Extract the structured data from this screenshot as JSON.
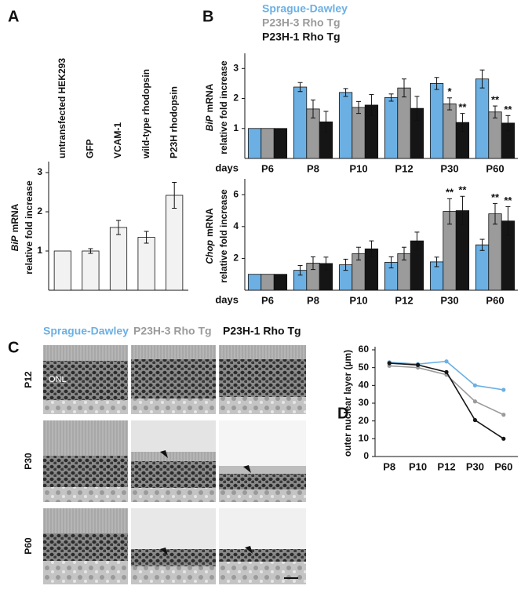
{
  "chart_data": [
    {
      "type": "bar",
      "panel": "A",
      "categories": [
        "untransfected HEK293",
        "GFP",
        "VCAM-1",
        "wild-type rhodopsin",
        "P23H rhodopsin"
      ],
      "values": [
        1,
        1,
        1.6,
        1.35,
        2.42
      ],
      "errors": [
        null,
        0.06,
        0.18,
        0.15,
        0.33
      ],
      "color": "#f2f2f2",
      "ylabel_gene": "BiP",
      "ylabel": "mRNA",
      "ylabel2": "relative fold increase",
      "ylim": [
        0,
        3.2
      ],
      "yticks": [
        1,
        2,
        3
      ]
    },
    {
      "type": "bar",
      "panel": "B",
      "xlabel": "days",
      "categories": [
        "P6",
        "P8",
        "P10",
        "P12",
        "P30",
        "P60"
      ],
      "series": [
        {
          "name": "Sprague-Dawley",
          "color": "#6cb0e3",
          "values": [
            1,
            2.38,
            2.2,
            2.03,
            2.5,
            2.65
          ],
          "errors": [
            null,
            0.15,
            0.13,
            0.12,
            0.2,
            0.3
          ],
          "significance": [
            null,
            null,
            null,
            null,
            null,
            null
          ]
        },
        {
          "name": "P23H-3 Rho Tg",
          "color": "#9b9b9b",
          "values": [
            1,
            1.65,
            1.7,
            2.35,
            1.82,
            1.55
          ],
          "errors": [
            null,
            0.3,
            0.2,
            0.3,
            0.2,
            0.2
          ],
          "significance": [
            null,
            null,
            null,
            null,
            "*",
            "**"
          ]
        },
        {
          "name": "P23H-1 Rho Tg",
          "color": "#151515",
          "values": [
            1,
            1.22,
            1.78,
            1.67,
            1.2,
            1.18
          ],
          "errors": [
            null,
            0.35,
            0.35,
            0.4,
            0.3,
            0.25
          ],
          "significance": [
            null,
            null,
            null,
            null,
            "**",
            "**"
          ]
        }
      ],
      "ylabel_gene": "BiP",
      "ylabel": "mRNA",
      "ylabel2": "relative fold increase",
      "ylim": [
        0,
        3.4
      ],
      "yticks": [
        1,
        2,
        3
      ]
    },
    {
      "type": "bar",
      "xlabel": "days",
      "categories": [
        "P6",
        "P8",
        "P10",
        "P12",
        "P30",
        "P60"
      ],
      "series": [
        {
          "color": "#6cb0e3",
          "values": [
            1,
            1.25,
            1.6,
            1.75,
            1.78,
            2.85
          ],
          "errors": [
            null,
            0.3,
            0.35,
            0.35,
            0.3,
            0.35
          ],
          "significance": [
            null,
            null,
            null,
            null,
            null,
            null
          ]
        },
        {
          "color": "#9b9b9b",
          "values": [
            1,
            1.7,
            2.3,
            2.3,
            4.95,
            4.8
          ],
          "errors": [
            null,
            0.4,
            0.4,
            0.4,
            0.8,
            0.65
          ],
          "significance": [
            null,
            null,
            null,
            null,
            "**",
            "**"
          ]
        },
        {
          "color": "#151515",
          "values": [
            1,
            1.68,
            2.6,
            3.1,
            5.0,
            4.35
          ],
          "errors": [
            null,
            0.4,
            0.5,
            0.55,
            0.9,
            0.9
          ],
          "significance": [
            null,
            null,
            null,
            null,
            "**",
            "**"
          ]
        }
      ],
      "ylabel_gene": "Chop",
      "ylabel": "mRNA",
      "ylabel2": "relative fold increase",
      "ylim": [
        0,
        6.8
      ],
      "yticks": [
        2,
        4,
        6
      ]
    },
    {
      "type": "line",
      "panel": "D",
      "categories": [
        "P8",
        "P10",
        "P12",
        "P30",
        "P60"
      ],
      "series": [
        {
          "color": "#6cb0e3",
          "values": [
            53,
            52,
            53.5,
            40,
            37.5
          ]
        },
        {
          "color": "#9b9b9b",
          "values": [
            51,
            50,
            46,
            31,
            23.5
          ]
        },
        {
          "color": "#151515",
          "values": [
            52.5,
            51.5,
            47.5,
            20.5,
            10
          ]
        }
      ],
      "ylabel": "outer nuclear layer (µm)",
      "ylim": [
        0,
        60
      ],
      "yticks": [
        0,
        10,
        20,
        30,
        40,
        50,
        60
      ]
    }
  ],
  "micrographs": {
    "panel": "C",
    "columns": [
      "Sprague-Dawley",
      "P23H-3 Rho Tg",
      "P23H-1 Rho Tg"
    ],
    "rows": [
      "P12",
      "P30",
      "P60"
    ],
    "annotation": "ONL"
  }
}
